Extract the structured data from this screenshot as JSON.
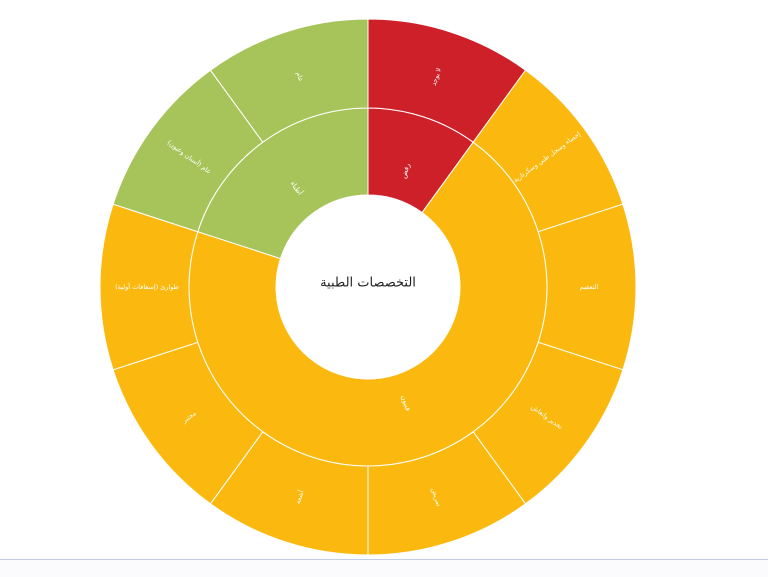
{
  "page": {
    "background_color": "#ffffff",
    "bottom_divider_color": "#c3cde4",
    "bottom_strip_color": "#fbfbfd"
  },
  "chart_data": {
    "type": "sunburst",
    "title": "التخصصات الطبية",
    "center_label": "التخصصات الطبية",
    "legend": "none",
    "grid": "off",
    "colors": {
      "red": "#ce2029",
      "amber": "#fbb90f",
      "green": "#a6c45a",
      "stroke": "#ffffff",
      "label_text": "#ffffff",
      "center_text": "#1f1f1f"
    },
    "geometry_note": "two concentric rings around white center; angles in degrees clockwise from 12 o'clock; 10 equal outer leaves of 36 degrees each",
    "inner_segments": [
      {
        "id": "refused",
        "label": "رفض",
        "color": "red",
        "a0": 0,
        "a1": 36,
        "value": 1
      },
      {
        "id": "technicians",
        "label": "فنيون",
        "color": "amber",
        "a0": 36,
        "a1": 288,
        "value": 7
      },
      {
        "id": "physicians",
        "label": "أطباء",
        "color": "green",
        "a0": 288,
        "a1": 360,
        "value": 2
      }
    ],
    "outer_segments": [
      {
        "id": "none-available",
        "label": "لا يوجد",
        "color": "red",
        "a0": 0,
        "a1": 36,
        "value": 1
      },
      {
        "id": "records-secretarial",
        "label": "إحصاء وسجل طبي وسكرتارية",
        "color": "amber",
        "a0": 36,
        "a1": 72,
        "value": 1
      },
      {
        "id": "sterilization",
        "label": "التعقيم",
        "color": "amber",
        "a0": 72,
        "a1": 108,
        "value": 1
      },
      {
        "id": "anesthesia-resuscitation",
        "label": "تخدير وانعاش",
        "color": "amber",
        "a0": 108,
        "a1": 144,
        "value": 1
      },
      {
        "id": "nursing",
        "label": "تمريض",
        "color": "amber",
        "a0": 144,
        "a1": 180,
        "value": 1
      },
      {
        "id": "radiology",
        "label": "أشعة",
        "color": "amber",
        "a0": 180,
        "a1": 216,
        "value": 1
      },
      {
        "id": "laboratory",
        "label": "مختبر",
        "color": "amber",
        "a0": 216,
        "a1": 252,
        "value": 1
      },
      {
        "id": "emergency-first-aid",
        "label": "طوارئ (إسعافات أولية)",
        "color": "amber",
        "a0": 252,
        "a1": 288,
        "value": 1
      },
      {
        "id": "general-dental-eyes",
        "label": "عام (أسنان وعيون)",
        "color": "green",
        "a0": 288,
        "a1": 324,
        "value": 1
      },
      {
        "id": "general",
        "label": "عام",
        "color": "green",
        "a0": 324,
        "a1": 360,
        "value": 1
      }
    ]
  }
}
